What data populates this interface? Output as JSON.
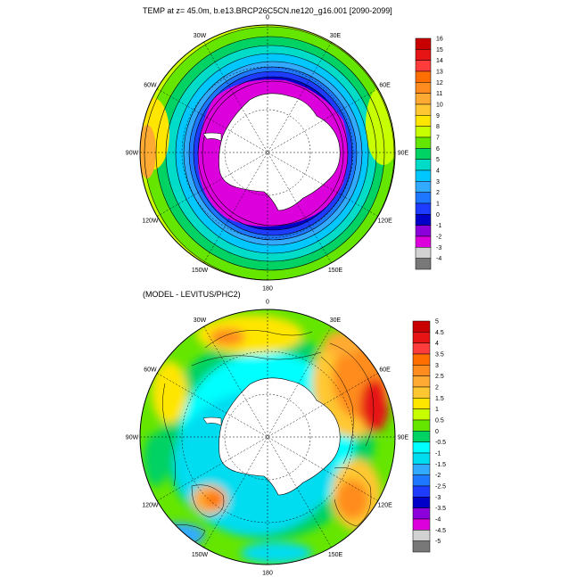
{
  "top_panel": {
    "title": "TEMP at z=  45.0m, b.e13.BRCP26C5CN.ne120_g16.001 [2090-2099]",
    "lon_labels": [
      "0",
      "30E",
      "60E",
      "90E",
      "120E",
      "150E",
      "180",
      "150W",
      "120W",
      "90W",
      "60W",
      "30W"
    ],
    "colorbar": {
      "labels": [
        "16",
        "15",
        "14",
        "13",
        "12",
        "11",
        "10",
        "9",
        "8",
        "7",
        "6",
        "5",
        "4",
        "3",
        "2",
        "1",
        "0",
        "-1",
        "-2",
        "-3",
        "-4"
      ],
      "colors": [
        "#c80000",
        "#e61414",
        "#ff3c3c",
        "#ff6e00",
        "#ff8c1e",
        "#ffaa32",
        "#ffc832",
        "#ffe600",
        "#c8ff00",
        "#64e600",
        "#00d264",
        "#00dcc8",
        "#00c8ff",
        "#32aaff",
        "#1e78ff",
        "#1e3cff",
        "#0000c8",
        "#8c00dc",
        "#dc00dc",
        "#d2d2d2",
        "#787878"
      ]
    }
  },
  "bottom_panel": {
    "title": "(MODEL - LEVITUS/PHC2)",
    "lon_labels": [
      "0",
      "30E",
      "60E",
      "90E",
      "120E",
      "150E",
      "180",
      "150W",
      "120W",
      "90W",
      "60W",
      "30W"
    ],
    "colorbar": {
      "labels": [
        "5",
        "4.5",
        "4",
        "3.5",
        "3",
        "2.5",
        "2",
        "1.5",
        "1",
        "0.5",
        "0",
        "-0.5",
        "-1",
        "-1.5",
        "-2",
        "-2.5",
        "-3",
        "-3.5",
        "-4",
        "-4.5",
        "-5"
      ],
      "colors": [
        "#c80000",
        "#e61414",
        "#ff3c3c",
        "#ff6e00",
        "#ff8c1e",
        "#ffaa32",
        "#ffc832",
        "#ffe600",
        "#c8ff00",
        "#64e600",
        "#00d264",
        "#00ffff",
        "#00dcf0",
        "#32aaff",
        "#1e78ff",
        "#1e3cff",
        "#0000c8",
        "#8c00dc",
        "#dc00dc",
        "#d2d2d2",
        "#787878"
      ]
    }
  }
}
